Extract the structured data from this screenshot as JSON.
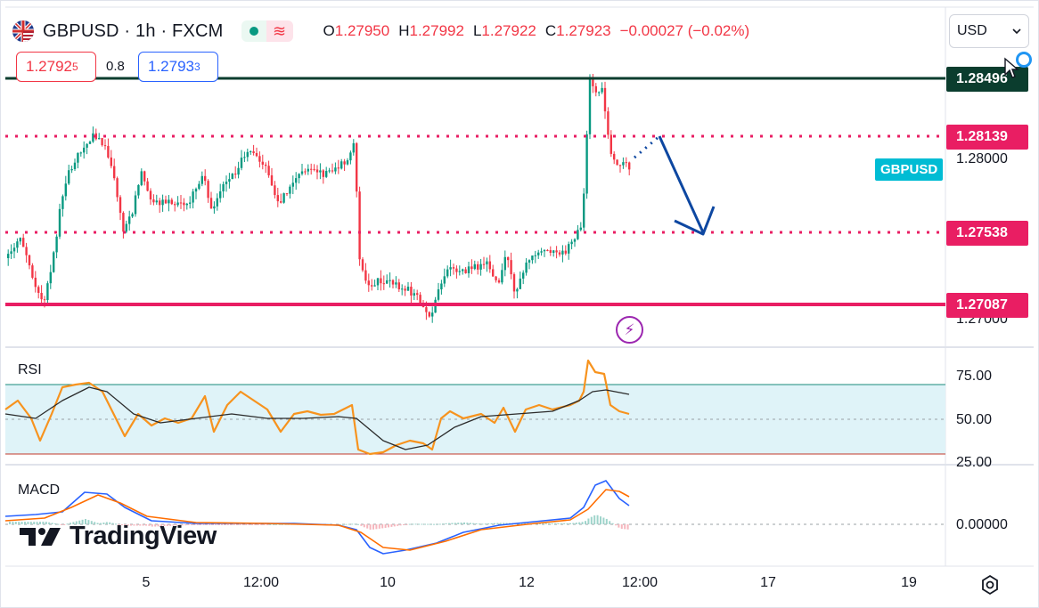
{
  "header": {
    "symbol_title": "GBPUSD · 1h · FXCM",
    "status_wave_icon": "≋",
    "ohlc": {
      "o_label": "O",
      "o_value": "1.27950",
      "h_label": "H",
      "h_value": "1.27992",
      "l_label": "L",
      "l_value": "1.27922",
      "c_label": "C",
      "c_value": "1.27923",
      "change": "−0.00027 (−0.02%)"
    }
  },
  "quote": {
    "bid_main": "1.2792",
    "bid_pip": "5",
    "spread": "0.8",
    "ask_main": "1.2793",
    "ask_pip": "3"
  },
  "currency_select": {
    "value": "USD"
  },
  "price_axis": {
    "tags": [
      {
        "value": "1.28496",
        "color": "#0b3d2e"
      },
      {
        "value": "1.28139",
        "color": "#e91e63"
      },
      {
        "value": "1.27538",
        "color": "#e91e63"
      },
      {
        "value": "1.27087",
        "color": "#e91e63"
      }
    ],
    "tick_1": "1.28000",
    "tick_2": "1.27000",
    "symbol_tag": "GBPUSD"
  },
  "rsi": {
    "title": "RSI",
    "tick_75": "75.00",
    "tick_50": "50.00",
    "tick_25": "25.00"
  },
  "macd": {
    "title": "MACD",
    "tick_0": "0.00000"
  },
  "time_axis": {
    "labels": [
      "5",
      "12:00",
      "10",
      "12",
      "12:00",
      "17",
      "19"
    ]
  },
  "brand": {
    "logo_text": "TradingView"
  },
  "icons": {
    "flag": "uk-us-flag-icon",
    "bolt": "lightning-icon",
    "settings": "settings-icon",
    "dropdown": "chevron-down-icon"
  },
  "colors": {
    "bull": "#089981",
    "bear": "#f23645",
    "resistance_line": "#0b3d2e",
    "support_lines": "#e91e63",
    "arrow": "#0d47a1",
    "rsi_line": "#f7931e",
    "rsi_band": "#dff3f8"
  },
  "chart_data": {
    "type": "candlestick",
    "symbol": "GBPUSD",
    "timeframe": "1h",
    "last_close": 1.27923,
    "levels": [
      1.28496,
      1.28139,
      1.27538,
      1.27087
    ],
    "visible_ticks": [
      1.28,
      1.27
    ],
    "rsi_levels": [
      75,
      50,
      25
    ],
    "macd_zero": 0
  }
}
